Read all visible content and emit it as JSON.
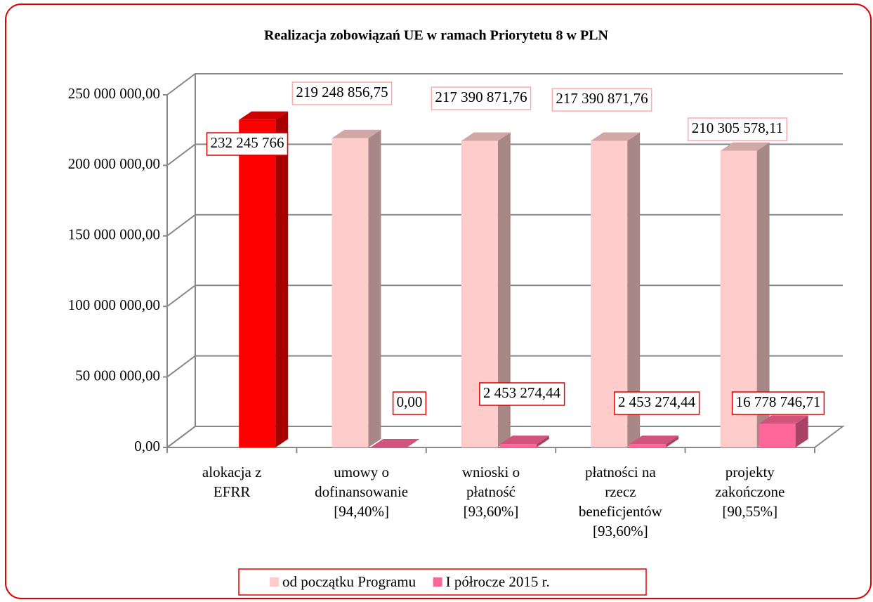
{
  "chart_data": {
    "type": "bar3d",
    "title": "Realizacja zobowiązań UE w ramach Priorytetu 8 w PLN",
    "categories": [
      "alokacja z\nEFRR",
      "umowy o\ndofinansowanie\n[94,40%]",
      "wnioski o\npłatność\n[93,60%]",
      "płatności na\nrzecz\nbeneficjentów\n[93,60%]",
      "projekty\nzakończone\n[90,55%]"
    ],
    "series": [
      {
        "name": "od początku Programu",
        "color": "#ffcccc",
        "point_colors": [
          "#ff0000",
          null,
          null,
          null,
          null
        ],
        "values": [
          232245766,
          219248856.75,
          217390871.76,
          217390871.76,
          210305578.11
        ],
        "value_labels": [
          "232 245 766",
          "219 248 856,75",
          "217 390 871,76",
          "217 390 871,76",
          "210 305 578,11"
        ]
      },
      {
        "name": "I półrocze 2015 r.",
        "color": "#ff6699",
        "values": [
          null,
          0,
          2453274.44,
          2453274.44,
          16778746.71
        ],
        "value_labels": [
          null,
          "0,00",
          "2 453 274,44",
          "2 453 274,44",
          "16 778 746,71"
        ]
      }
    ],
    "ylim": [
      0,
      250000000
    ],
    "yticks": [
      {
        "value": 0,
        "label": "0,00"
      },
      {
        "value": 50000000,
        "label": "50 000 000,00"
      },
      {
        "value": 100000000,
        "label": "100 000 000,00"
      },
      {
        "value": 150000000,
        "label": "150 000 000,00"
      },
      {
        "value": 200000000,
        "label": "200 000 000,00"
      },
      {
        "value": 250000000,
        "label": "250 000 000,00"
      }
    ],
    "grid": true,
    "legend": "bottom"
  }
}
